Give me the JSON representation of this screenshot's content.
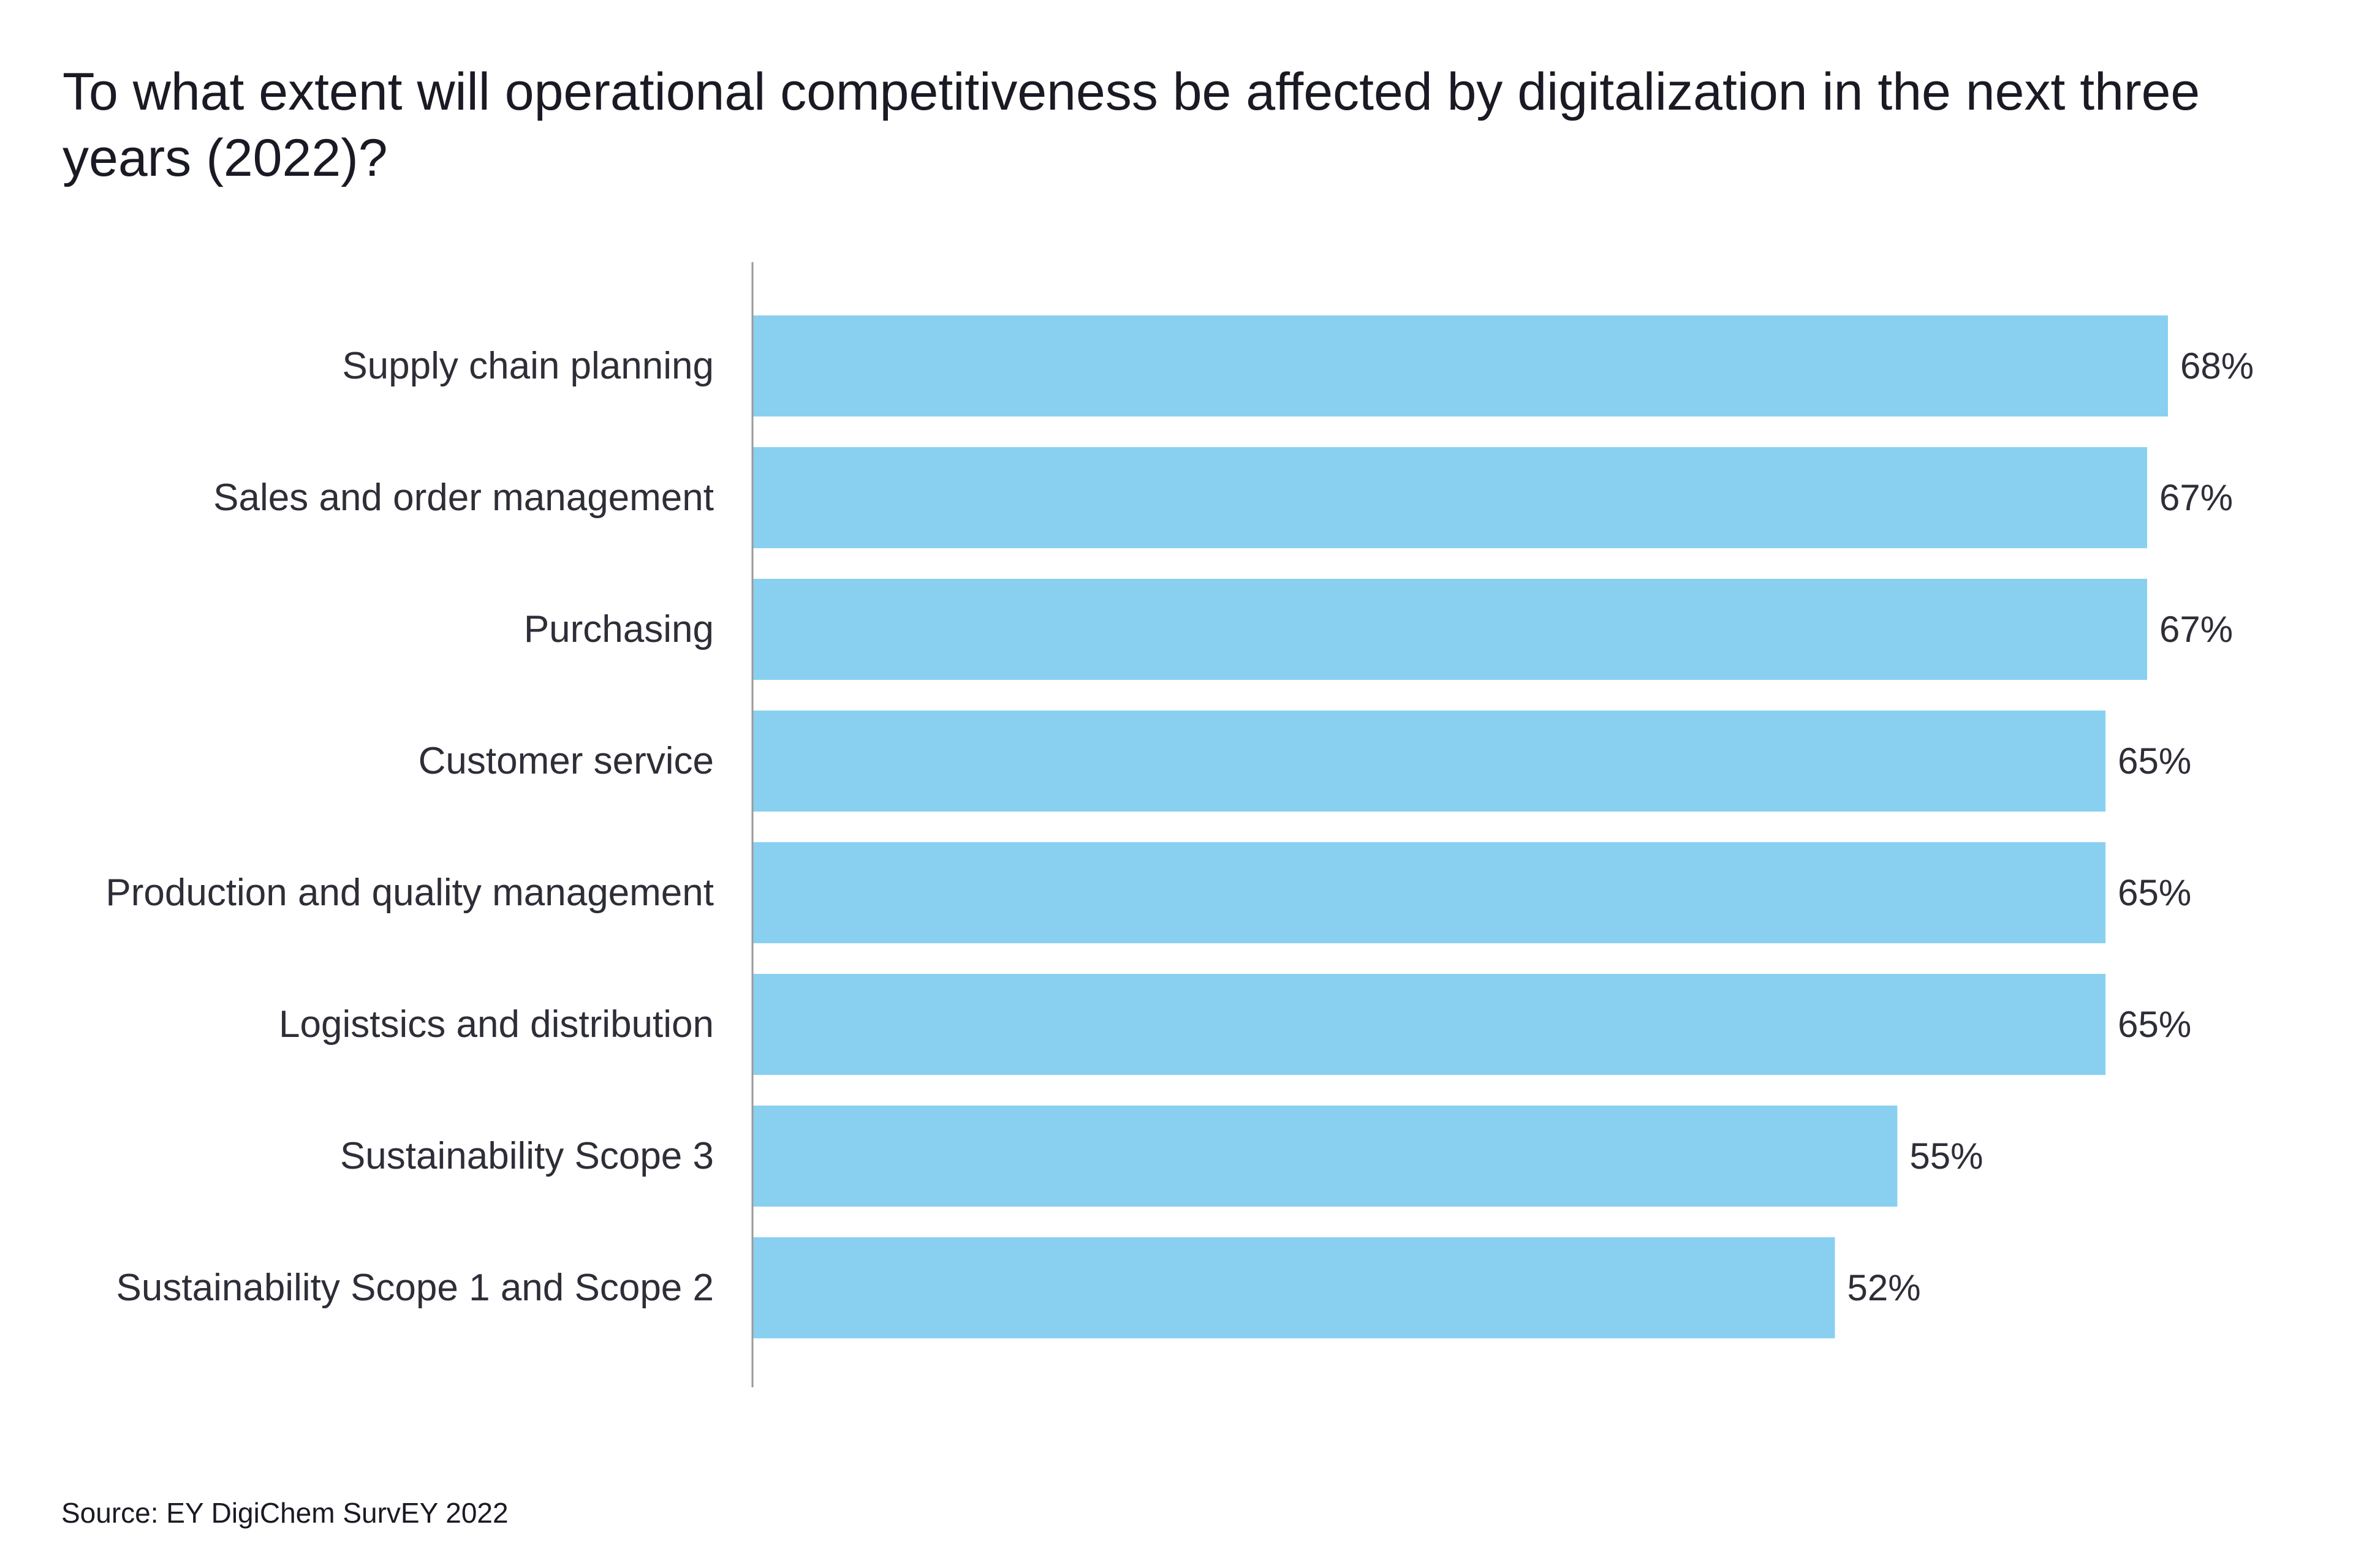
{
  "chart_data": {
    "type": "bar",
    "orientation": "horizontal",
    "title": "To what extent will operational competitiveness be affected by digitalization in the next three years (2022)?",
    "categories": [
      "Supply chain planning",
      "Sales and order management",
      "Purchasing",
      "Customer service",
      "Production and quality management",
      "Logistsics and distribution",
      "Sustainability Scope 3",
      "Sustainability Scope 1 and Scope 2"
    ],
    "values": [
      68,
      67,
      67,
      65,
      65,
      65,
      55,
      52
    ],
    "value_labels": [
      "68%",
      "67%",
      "67%",
      "65%",
      "65%",
      "65%",
      "55%",
      "52%"
    ],
    "unit": "%",
    "xlim": [
      0,
      100
    ],
    "grid": false,
    "legend": "none",
    "bar_color": "#89d0f0",
    "axis_color": "#9a9a9a",
    "source": "Source: EY DigiChem SurvEY 2022"
  }
}
